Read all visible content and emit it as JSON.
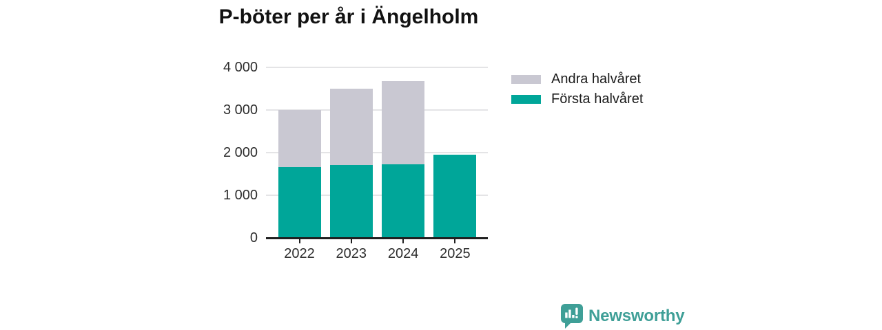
{
  "chart": {
    "title": "P-böter per år i Ängelholm"
  },
  "chart_data": {
    "type": "bar",
    "stacked": true,
    "title": "P-böter per år i Ängelholm",
    "categories": [
      "2022",
      "2023",
      "2024",
      "2025"
    ],
    "series": [
      {
        "name": "Första halvåret",
        "color": "#00a699",
        "values": [
          1650,
          1700,
          1720,
          1950
        ]
      },
      {
        "name": "Andra halvåret",
        "color": "#c9c8d2",
        "values": [
          1350,
          1800,
          1950,
          0
        ]
      }
    ],
    "totals": [
      3000,
      3500,
      3670,
      1950
    ],
    "xlabel": "",
    "ylabel": "",
    "ylim": [
      0,
      4000
    ],
    "y_ticks": [
      0,
      1000,
      2000,
      3000,
      4000
    ],
    "y_tick_labels": [
      "0",
      "1 000",
      "2 000",
      "3 000",
      "4 000"
    ],
    "grid": true,
    "legend_position": "right",
    "legend_order": [
      "Andra halvåret",
      "Första halvåret"
    ]
  },
  "branding": {
    "wordmark": "Newsworthy"
  },
  "colors": {
    "first_half": "#00a699",
    "second_half": "#c9c8d2",
    "gridline": "#e4e4e6",
    "axis": "#1f1f1f",
    "text": "#2d2d2d",
    "title": "#121212",
    "brand": "#3f9f97"
  }
}
